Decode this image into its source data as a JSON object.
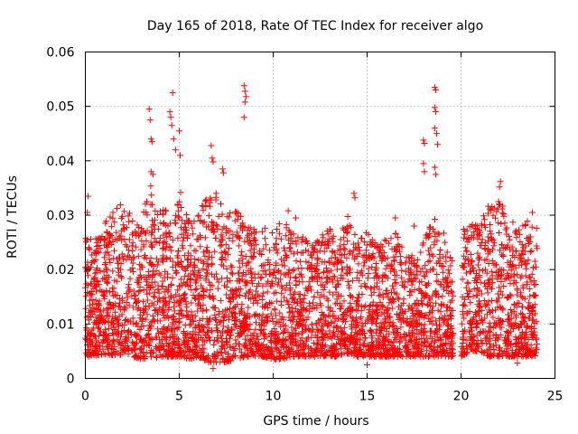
{
  "chart_data": {
    "type": "scatter",
    "title": "Day 165 of 2018, Rate Of TEC Index for receiver algo",
    "xlabel": "GPS time / hours",
    "ylabel": "ROTI / TECUs",
    "xlim": [
      0,
      25
    ],
    "ylim": [
      0,
      0.06
    ],
    "x_ticks": [
      "0",
      "5",
      "10",
      "15",
      "20",
      "25"
    ],
    "x_tick_values": [
      0,
      5,
      10,
      15,
      20,
      25
    ],
    "y_ticks": [
      "0",
      "0.01",
      "0.02",
      "0.03",
      "0.04",
      "0.05",
      "0.06"
    ],
    "y_tick_values": [
      0,
      0.01,
      0.02,
      0.03,
      0.04,
      0.05,
      0.06
    ],
    "grid": true,
    "marker": "+",
    "series_color": "#ff0000",
    "data_gaps_hours": [
      [
        19.6,
        20.0
      ]
    ],
    "envelope": {
      "x": [
        0,
        0.5,
        1,
        1.5,
        2,
        2.5,
        3,
        3.5,
        4,
        4.5,
        5,
        5.5,
        6,
        6.5,
        7,
        7.5,
        8,
        8.5,
        9,
        9.5,
        10,
        10.5,
        11,
        11.5,
        12,
        12.5,
        13,
        13.5,
        14,
        14.5,
        15,
        15.5,
        16,
        16.5,
        17,
        17.5,
        18,
        18.5,
        19,
        19.5,
        20,
        20.5,
        21,
        21.5,
        22,
        22.5,
        23,
        23.5,
        24
      ],
      "low": [
        0.004,
        0.004,
        0.0045,
        0.004,
        0.0045,
        0.004,
        0.0035,
        0.0035,
        0.004,
        0.004,
        0.004,
        0.0035,
        0.004,
        0.003,
        0.003,
        0.003,
        0.0035,
        0.004,
        0.004,
        0.004,
        0.0035,
        0.0035,
        0.004,
        0.004,
        0.004,
        0.004,
        0.004,
        0.004,
        0.0045,
        0.004,
        0.004,
        0.004,
        0.004,
        0.004,
        0.004,
        0.004,
        0.004,
        0.004,
        0.004,
        0.004,
        0.004,
        0.005,
        0.005,
        0.004,
        0.004,
        0.004,
        0.004,
        0.004,
        0.004
      ],
      "high": [
        0.026,
        0.026,
        0.028,
        0.032,
        0.034,
        0.03,
        0.03,
        0.036,
        0.032,
        0.03,
        0.035,
        0.03,
        0.03,
        0.034,
        0.035,
        0.03,
        0.032,
        0.028,
        0.028,
        0.028,
        0.028,
        0.03,
        0.027,
        0.026,
        0.026,
        0.026,
        0.028,
        0.026,
        0.03,
        0.025,
        0.028,
        0.026,
        0.026,
        0.027,
        0.025,
        0.022,
        0.026,
        0.03,
        0.028,
        0.022,
        0.028,
        0.028,
        0.03,
        0.032,
        0.034,
        0.03,
        0.028,
        0.029,
        0.028
      ]
    },
    "points": [
      {
        "x": 3.4,
        "y": 0.0495
      },
      {
        "x": 3.45,
        "y": 0.0475
      },
      {
        "x": 3.5,
        "y": 0.044
      },
      {
        "x": 3.55,
        "y": 0.0435
      },
      {
        "x": 3.5,
        "y": 0.038
      },
      {
        "x": 3.6,
        "y": 0.0375
      },
      {
        "x": 4.5,
        "y": 0.049
      },
      {
        "x": 4.55,
        "y": 0.048
      },
      {
        "x": 4.6,
        "y": 0.0465
      },
      {
        "x": 4.65,
        "y": 0.0525
      },
      {
        "x": 4.7,
        "y": 0.044
      },
      {
        "x": 4.8,
        "y": 0.042
      },
      {
        "x": 5.0,
        "y": 0.0455
      },
      {
        "x": 5.05,
        "y": 0.041
      },
      {
        "x": 6.7,
        "y": 0.0428
      },
      {
        "x": 6.75,
        "y": 0.0405
      },
      {
        "x": 6.8,
        "y": 0.0398
      },
      {
        "x": 7.3,
        "y": 0.0385
      },
      {
        "x": 7.35,
        "y": 0.0378
      },
      {
        "x": 8.45,
        "y": 0.0538
      },
      {
        "x": 8.5,
        "y": 0.0528
      },
      {
        "x": 8.55,
        "y": 0.0518
      },
      {
        "x": 8.5,
        "y": 0.0508
      },
      {
        "x": 8.45,
        "y": 0.048
      },
      {
        "x": 18.0,
        "y": 0.0438
      },
      {
        "x": 18.05,
        "y": 0.0432
      },
      {
        "x": 18.0,
        "y": 0.0395
      },
      {
        "x": 18.05,
        "y": 0.038
      },
      {
        "x": 18.6,
        "y": 0.0535
      },
      {
        "x": 18.65,
        "y": 0.053
      },
      {
        "x": 18.6,
        "y": 0.0498
      },
      {
        "x": 18.65,
        "y": 0.049
      },
      {
        "x": 18.6,
        "y": 0.046
      },
      {
        "x": 18.7,
        "y": 0.045
      },
      {
        "x": 18.75,
        "y": 0.043
      },
      {
        "x": 18.6,
        "y": 0.0388
      },
      {
        "x": 18.65,
        "y": 0.0375
      },
      {
        "x": 0.15,
        "y": 0.0335
      },
      {
        "x": 0.1,
        "y": 0.0305
      },
      {
        "x": 14.3,
        "y": 0.034
      },
      {
        "x": 14.35,
        "y": 0.0332
      },
      {
        "x": 10.8,
        "y": 0.0308
      },
      {
        "x": 11.2,
        "y": 0.0295
      },
      {
        "x": 16.5,
        "y": 0.0295
      },
      {
        "x": 17.5,
        "y": 0.028
      },
      {
        "x": 22.1,
        "y": 0.0362
      },
      {
        "x": 22.05,
        "y": 0.0352
      },
      {
        "x": 23.8,
        "y": 0.0305
      },
      {
        "x": 15.0,
        "y": 0.0025
      },
      {
        "x": 6.8,
        "y": 0.0018
      },
      {
        "x": 23.0,
        "y": 0.0028
      }
    ]
  }
}
